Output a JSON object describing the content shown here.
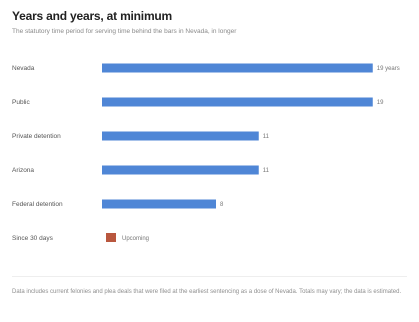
{
  "header": {
    "title": "Years and years, at minimum",
    "subtitle": "The statutory time period for serving time behind the bars in Nevada, in longer"
  },
  "chart_data": {
    "type": "bar",
    "orientation": "horizontal",
    "categories": [
      "Nevada",
      "Public",
      "Private detention",
      "Arizona",
      "Federal detention",
      "Since 30 days"
    ],
    "values": [
      19,
      19,
      11,
      11,
      8,
      0
    ],
    "value_labels": [
      "19 years",
      "19",
      "11",
      "11",
      "8",
      ""
    ],
    "pending_label": "Upcoming",
    "xlim": [
      0,
      20
    ],
    "grid": false,
    "legend": "none",
    "colors": {
      "bar": "#4f86d6",
      "pending": "#b9573e"
    }
  },
  "footer": {
    "note": "Data includes current felonies and plea deals that were filed at the earliest sentencing as a dose of Nevada. Totals may vary; the data is estimated."
  }
}
